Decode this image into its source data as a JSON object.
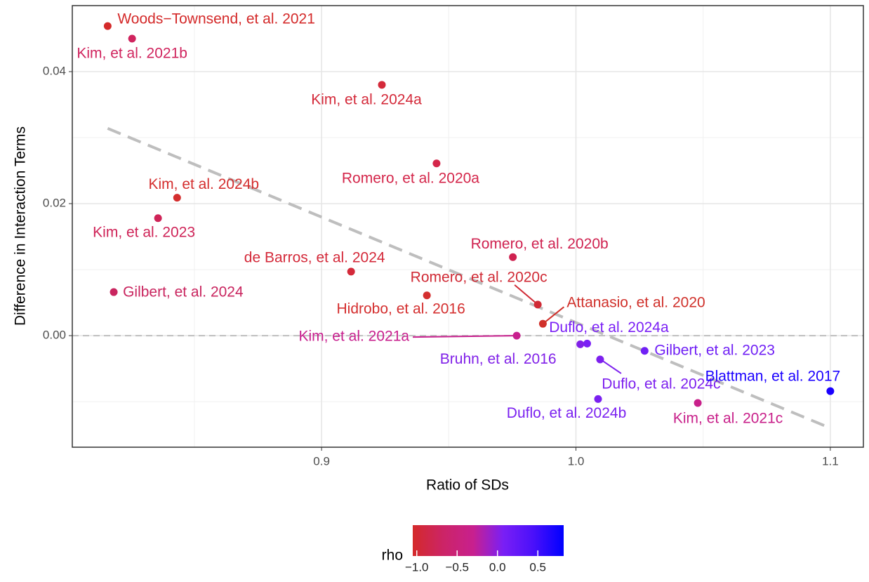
{
  "chart_data": {
    "type": "scatter",
    "x_label": "Ratio of SDs",
    "y_label": "Difference in Interaction Terms",
    "labels": [
      "Woods−Townsend, et al. 2021",
      "Kim, et al. 2021b",
      "Kim, et al. 2024a",
      "Romero, et al. 2020a",
      "Kim, et al. 2024b",
      "Kim, et al. 2023",
      "Romero, et al. 2020b",
      "de Barros, et al. 2024",
      "Gilbert, et al. 2024",
      "Hidrobo, et al. 2016",
      "Romero, et al. 2020c",
      "Attanasio, et al. 2020",
      "Kim, et al. 2021a",
      "Duflo, et al. 2024a",
      "Bruhn, et al. 2016",
      "Gilbert, et al. 2023",
      "Duflo, et al. 2024c",
      "Blattman, et al. 2017",
      "Duflo, et al. 2024b",
      "Kim, et al. 2021c"
    ],
    "x": [
      0.8159,
      0.8255,
      0.9237,
      0.9452,
      0.8432,
      0.8357,
      0.9752,
      0.9116,
      0.8183,
      0.9414,
      0.985,
      0.987,
      0.9767,
      1.0044,
      1.0017,
      1.027,
      1.0095,
      1.1,
      1.0087,
      1.0479
    ],
    "y": [
      0.0469,
      0.045,
      0.038,
      0.0261,
      0.0209,
      0.0178,
      0.0119,
      0.0097,
      0.0066,
      0.0061,
      0.0047,
      0.0018,
      0.0,
      -0.0012,
      -0.0013,
      -0.0023,
      -0.0036,
      -0.0084,
      -0.0096,
      -0.0102
    ],
    "colors": [
      "#d42a2a",
      "#d0245e",
      "#d42a3a",
      "#d4264a",
      "#d42e2e",
      "#cf2458",
      "#cf2250",
      "#d42a3a",
      "#c9255f",
      "#d42f2f",
      "#d02a35",
      "#d0302a",
      "#c8208e",
      "#7a1ff5",
      "#8020e8",
      "#7020f5",
      "#7d20ee",
      "#1a00ff",
      "#7a20f0",
      "#c8208a"
    ],
    "xlim": [
      0.802,
      1.113
    ],
    "ylim": [
      -0.0169,
      0.05
    ],
    "xticks": [
      0.9,
      {
        "value": 1.0,
        "label": "1.0"
      },
      1.1
    ],
    "yticks": [
      {
        "value": 0,
        "label": "0.00"
      },
      {
        "value": 0.02,
        "label": "0.02"
      },
      {
        "value": 0.04,
        "label": "0.04"
      }
    ],
    "x_minor_grid": [
      0.85,
      0.95,
      1.05
    ],
    "y_minor_grid": [
      -0.01,
      0.01,
      0.03
    ],
    "grid": true,
    "hline": 0,
    "trend_line": {
      "x": [
        0.8159,
        1.1
      ],
      "y": [
        0.0314,
        -0.014
      ],
      "color": "#bebebe"
    },
    "colorbar": {
      "title": "rho",
      "lim": [
        -1.05,
        0.82
      ],
      "ticks": [
        {
          "value": -1.0,
          "label": "−1.0"
        },
        {
          "value": -0.5,
          "label": "−0.5"
        },
        {
          "value": 0.0,
          "label": "0.0"
        },
        {
          "value": 0.5,
          "label": "0.5"
        }
      ],
      "colors": [
        "#d42a2a",
        "#cc2466",
        "#c8208e",
        "#7a1ff5",
        "#4a10fa",
        "#0000ff"
      ]
    }
  }
}
